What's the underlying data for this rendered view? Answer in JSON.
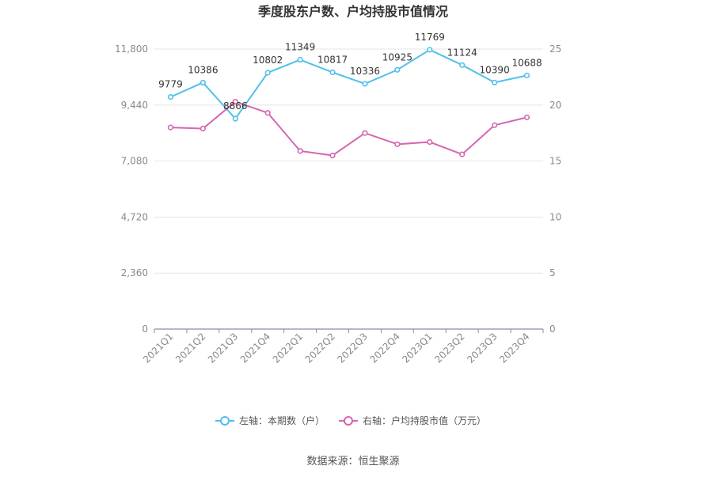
{
  "title": "季度股东户数、户均持股市值情况",
  "source": "数据来源：恒生聚源",
  "chart_data": {
    "type": "line",
    "categories": [
      "2021Q1",
      "2021Q2",
      "2021Q3",
      "2021Q4",
      "2022Q1",
      "2022Q2",
      "2022Q3",
      "2022Q4",
      "2023Q1",
      "2023Q2",
      "2023Q3",
      "2023Q4"
    ],
    "series": [
      {
        "name": "左轴：本期数（户）",
        "axis": "left",
        "color": "#4fc0ea",
        "values": [
          9779,
          10386,
          8866,
          10802,
          11349,
          10817,
          10336,
          10925,
          11769,
          11124,
          10390,
          10688
        ]
      },
      {
        "name": "右轴：户均持股市值（万元）",
        "axis": "right",
        "color": "#d665b1",
        "values": [
          18.0,
          17.9,
          20.3,
          19.3,
          15.9,
          15.5,
          17.5,
          16.5,
          16.7,
          15.6,
          18.2,
          18.9
        ]
      }
    ],
    "left_axis": {
      "ylim": [
        0,
        11800
      ],
      "ticks": [
        "0",
        "2,360",
        "4,720",
        "7,080",
        "9,440",
        "11,800"
      ]
    },
    "right_axis": {
      "ylim": [
        0,
        25
      ],
      "ticks": [
        "0",
        "5",
        "10",
        "15",
        "20",
        "25"
      ]
    },
    "grid": true,
    "legend": "bottom"
  }
}
